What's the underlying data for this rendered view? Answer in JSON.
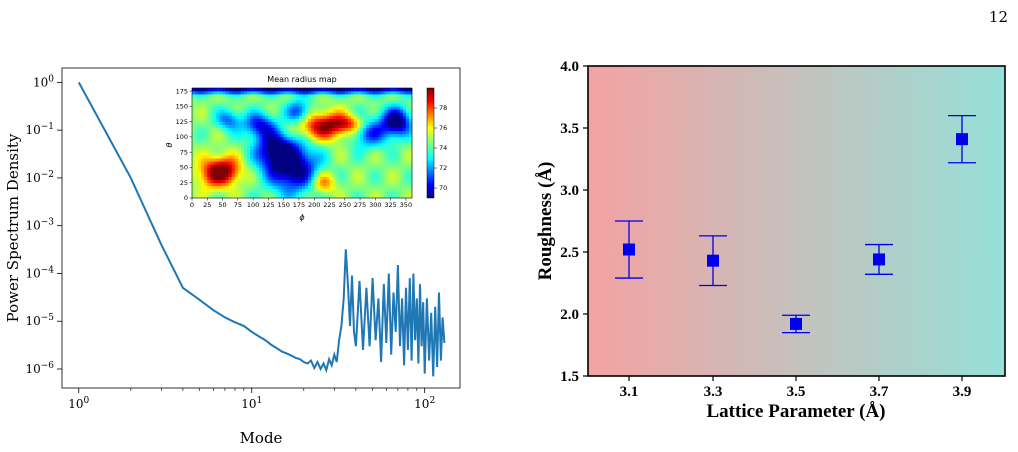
{
  "page_number": "12",
  "chart_data": [
    {
      "type": "line",
      "title": "",
      "xlabel": "Mode",
      "ylabel": "Power Spectrum Density",
      "x_scale": "log",
      "y_scale": "log",
      "xlim": [
        0.8,
        160
      ],
      "ylim": [
        4e-07,
        2
      ],
      "x_ticks": [
        1,
        10,
        100
      ],
      "x_tick_labels": [
        "10^0",
        "10^1",
        "10^2"
      ],
      "y_ticks": [
        1e-06,
        1e-05,
        0.0001,
        0.001,
        0.01,
        0.1,
        1
      ],
      "y_tick_labels": [
        "10^-6",
        "10^-5",
        "10^-4",
        "10^-3",
        "10^-2",
        "10^-1",
        "10^0"
      ],
      "color": "#1f77b4",
      "series": [
        {
          "x": [
            1,
            2,
            3,
            4,
            5,
            6,
            7,
            8,
            9,
            10,
            11,
            12,
            13,
            14,
            15,
            16,
            17,
            18,
            19,
            20,
            21,
            22,
            23,
            24,
            25,
            26,
            27,
            28,
            29,
            30,
            31,
            32,
            33,
            34,
            35,
            36,
            37,
            38,
            39,
            40,
            42,
            44,
            46,
            48,
            50,
            52,
            54,
            56,
            58,
            60,
            62,
            64,
            66,
            68,
            70,
            72,
            74,
            76,
            78,
            80,
            82,
            84,
            86,
            88,
            90,
            92,
            94,
            96,
            98,
            100,
            103,
            106,
            109,
            112,
            115,
            118,
            121,
            124,
            127,
            130
          ],
          "y": [
            1.0,
            0.01,
            0.0004,
            5e-05,
            2.8e-05,
            1.7e-05,
            1.2e-05,
            9.5e-06,
            8e-06,
            6e-06,
            4.8e-06,
            4e-06,
            3.2e-06,
            2.7e-06,
            2.3e-06,
            2.1e-06,
            1.9e-06,
            1.7e-06,
            1.6e-06,
            1.4e-06,
            1.3e-06,
            1.5e-06,
            1.05e-06,
            1.4e-06,
            1e-06,
            1.3e-06,
            9.5e-07,
            1.6e-06,
            1.2e-06,
            2e-06,
            1.4e-06,
            4e-06,
            8e-06,
            3e-05,
            0.00032,
            6e-05,
            8e-06,
            9e-05,
            6e-06,
            3e-06,
            7e-05,
            2.5e-06,
            5e-05,
            3e-06,
            8e-05,
            4e-06,
            3e-05,
            1.4e-06,
            6e-05,
            3.5e-06,
            0.0001,
            2e-06,
            4e-05,
            6e-06,
            0.00015,
            3e-06,
            3e-05,
            1.2e-06,
            5e-05,
            2.5e-06,
            8e-05,
            1.5e-06,
            0.0001,
            4e-06,
            3e-05,
            1.3e-06,
            6e-05,
            3e-06,
            2.5e-05,
            8e-07,
            3e-05,
            1.5e-06,
            1.5e-05,
            7e-07,
            2e-05,
            1.1e-06,
            4e-05,
            1.5e-06,
            1.2e-05,
            3.5e-06
          ]
        }
      ]
    },
    {
      "type": "heatmap",
      "title": "Mean radius map",
      "xlabel": "ϕ",
      "ylabel": "θ",
      "x_ticks": [
        0,
        25,
        50,
        75,
        100,
        125,
        150,
        175,
        200,
        225,
        250,
        275,
        300,
        325,
        350
      ],
      "y_ticks": [
        0,
        25,
        50,
        75,
        100,
        125,
        150,
        175
      ],
      "colorbar_ticks": [
        70,
        72,
        74,
        76,
        78
      ],
      "colorbar_range": [
        69,
        80
      ],
      "colormap": "jet"
    },
    {
      "type": "scatter",
      "title": "",
      "xlabel": "Lattice Parameter (Å)",
      "ylabel": "Roughness (Å)",
      "categories": [
        "3.1",
        "3.3",
        "3.5",
        "3.7",
        "3.9"
      ],
      "values": [
        2.52,
        2.43,
        1.92,
        2.44,
        3.41
      ],
      "error": [
        0.23,
        0.2,
        0.07,
        0.12,
        0.19
      ],
      "ylim": [
        1.5,
        4.0
      ],
      "y_tick_labels": [
        "1.5",
        "2.0",
        "2.5",
        "3.0",
        "3.5",
        "4.0"
      ],
      "marker_color": "#0000ee",
      "background_gradient": [
        "#f4a2a2",
        "#96e0d8"
      ]
    }
  ]
}
